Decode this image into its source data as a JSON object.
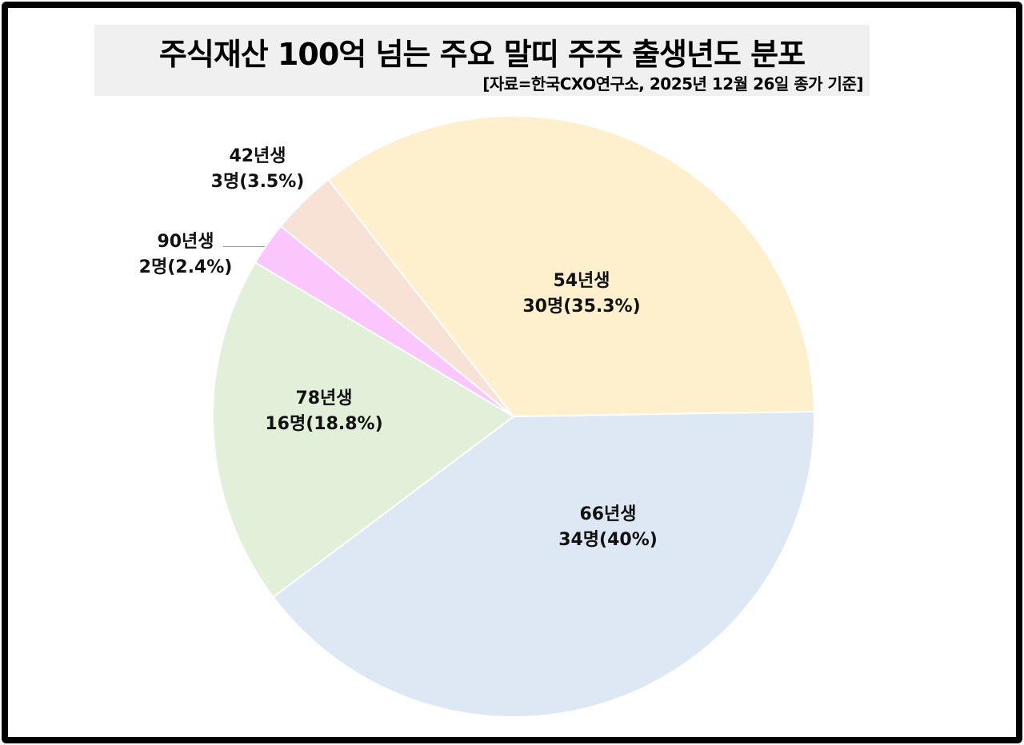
{
  "title": "주식재산 100억 넘는 주요 말띠 주주 출생년도  분포",
  "subtitle": "[자료=한국CXO연구소, 2025년 12월 26일 종가 기준]",
  "chart_data": {
    "type": "pie",
    "title": "주식재산 100억 넘는 주요 말띠 주주 출생년도 분포",
    "subtitle": "[자료=한국CXO연구소, 2025년 12월 26일 종가 기준]",
    "start_angle_deg_clockwise_from_top": -38,
    "categories": [
      "54년생",
      "66년생",
      "78년생",
      "90년생",
      "42년생"
    ],
    "values": [
      30,
      34,
      16,
      2,
      3
    ],
    "percentages": [
      35.3,
      40,
      18.8,
      2.4,
      3.5
    ],
    "unit": "명",
    "colors": [
      "#FFF0CD",
      "#DEE8F4",
      "#E2EFD9",
      "#FBC6FB",
      "#F8E2D6"
    ],
    "legend": "none (inline data labels)"
  },
  "labels": [
    {
      "name": "54년생",
      "value": "30명(35.3%)"
    },
    {
      "name": "66년생",
      "value": "34명(40%)"
    },
    {
      "name": "78년생",
      "value": "16명(18.8%)"
    },
    {
      "name": "90년생",
      "value": "2명(2.4%)"
    },
    {
      "name": "42년생",
      "value": "3명(3.5%)"
    }
  ]
}
